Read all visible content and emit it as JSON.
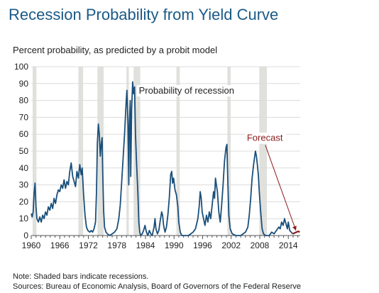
{
  "header": {
    "title": "Recession Probability from Yield Curve",
    "subtitle": "Percent probability, as predicted by a probit model"
  },
  "footer": {
    "note": "Note: Shaded bars indicate recessions.",
    "sources": "Sources: Bureau of Economic Analysis, Board of Governors of the Federal Reserve"
  },
  "chart_data": {
    "type": "line",
    "title": "Recession Probability from Yield Curve",
    "ylabel": "Percent probability, as predicted by a probit model",
    "xlim": [
      1960,
      2016.5
    ],
    "ylim": [
      0,
      100
    ],
    "grid": true,
    "x_ticks": [
      "1960",
      "1966",
      "1972",
      "1978",
      "1984",
      "1990",
      "1996",
      "2002",
      "2008",
      "2014"
    ],
    "x_tick_values": [
      1960,
      1966,
      1972,
      1978,
      1984,
      1990,
      1996,
      2002,
      2008,
      2014
    ],
    "y_ticks": [
      "0",
      "10",
      "20",
      "30",
      "40",
      "50",
      "60",
      "70",
      "80",
      "90",
      "100"
    ],
    "y_tick_values": [
      0,
      10,
      20,
      30,
      40,
      50,
      60,
      70,
      80,
      90,
      100
    ],
    "recessions": [
      [
        1960.3,
        1961.1
      ],
      [
        1969.9,
        1970.9
      ],
      [
        1973.9,
        1975.2
      ],
      [
        1980.0,
        1980.5
      ],
      [
        1981.5,
        1982.9
      ],
      [
        1990.5,
        1991.2
      ],
      [
        2001.2,
        2001.9
      ],
      [
        2007.9,
        2009.5
      ]
    ],
    "colors": {
      "line": "#1a4f7a",
      "recession": "#e0e0dc",
      "forecast": "#8b1a1a",
      "grid": "#dcdcdc"
    },
    "annotations": [
      {
        "text": "Probability of recession",
        "x": 1982.6,
        "y": 84
      },
      {
        "text": "Forecast",
        "x": 2005.3,
        "y": 56
      }
    ],
    "series": [
      {
        "name": "Probability of recession",
        "points": [
          [
            1960.0,
            13
          ],
          [
            1960.2,
            11
          ],
          [
            1960.4,
            14
          ],
          [
            1960.6,
            25
          ],
          [
            1960.8,
            31
          ],
          [
            1961.0,
            17
          ],
          [
            1961.2,
            10
          ],
          [
            1961.5,
            8
          ],
          [
            1961.8,
            11
          ],
          [
            1962.1,
            8
          ],
          [
            1962.4,
            12
          ],
          [
            1962.7,
            10
          ],
          [
            1963.0,
            14
          ],
          [
            1963.3,
            12
          ],
          [
            1963.6,
            17
          ],
          [
            1963.9,
            15
          ],
          [
            1964.2,
            19
          ],
          [
            1964.5,
            16
          ],
          [
            1964.8,
            22
          ],
          [
            1965.1,
            19
          ],
          [
            1965.4,
            24
          ],
          [
            1965.7,
            27
          ],
          [
            1966.0,
            26
          ],
          [
            1966.3,
            30
          ],
          [
            1966.6,
            28
          ],
          [
            1966.9,
            33
          ],
          [
            1967.2,
            28
          ],
          [
            1967.5,
            32
          ],
          [
            1967.8,
            30
          ],
          [
            1968.1,
            38
          ],
          [
            1968.4,
            43
          ],
          [
            1968.7,
            35
          ],
          [
            1969.0,
            32
          ],
          [
            1969.3,
            29
          ],
          [
            1969.6,
            38
          ],
          [
            1969.9,
            34
          ],
          [
            1970.2,
            42
          ],
          [
            1970.5,
            36
          ],
          [
            1970.7,
            40
          ],
          [
            1971.0,
            24
          ],
          [
            1971.3,
            12
          ],
          [
            1971.6,
            5
          ],
          [
            1971.9,
            3
          ],
          [
            1972.3,
            2
          ],
          [
            1972.6,
            3
          ],
          [
            1972.9,
            2
          ],
          [
            1973.2,
            4
          ],
          [
            1973.5,
            8
          ],
          [
            1973.7,
            25
          ],
          [
            1973.9,
            55
          ],
          [
            1974.1,
            66
          ],
          [
            1974.3,
            60
          ],
          [
            1974.5,
            47
          ],
          [
            1974.7,
            54
          ],
          [
            1974.9,
            58
          ],
          [
            1975.0,
            40
          ],
          [
            1975.2,
            15
          ],
          [
            1975.4,
            5
          ],
          [
            1975.7,
            2
          ],
          [
            1976.0,
            1
          ],
          [
            1976.5,
            0
          ],
          [
            1977.0,
            1
          ],
          [
            1977.5,
            2
          ],
          [
            1978.0,
            4
          ],
          [
            1978.4,
            10
          ],
          [
            1978.7,
            18
          ],
          [
            1979.0,
            32
          ],
          [
            1979.3,
            46
          ],
          [
            1979.6,
            60
          ],
          [
            1979.9,
            77
          ],
          [
            1980.1,
            86
          ],
          [
            1980.3,
            68
          ],
          [
            1980.5,
            30
          ],
          [
            1980.6,
            65
          ],
          [
            1980.8,
            80
          ],
          [
            1980.9,
            35
          ],
          [
            1981.1,
            75
          ],
          [
            1981.3,
            91
          ],
          [
            1981.5,
            84
          ],
          [
            1981.7,
            88
          ],
          [
            1981.9,
            60
          ],
          [
            1982.1,
            45
          ],
          [
            1982.4,
            25
          ],
          [
            1982.6,
            8
          ],
          [
            1982.8,
            2
          ],
          [
            1983.0,
            0
          ],
          [
            1983.3,
            1
          ],
          [
            1983.6,
            3
          ],
          [
            1983.9,
            6
          ],
          [
            1984.2,
            2
          ],
          [
            1984.5,
            0
          ],
          [
            1984.8,
            3
          ],
          [
            1985.1,
            1
          ],
          [
            1985.4,
            0
          ],
          [
            1985.8,
            5
          ],
          [
            1986.0,
            10
          ],
          [
            1986.2,
            4
          ],
          [
            1986.5,
            1
          ],
          [
            1986.8,
            3
          ],
          [
            1987.1,
            9
          ],
          [
            1987.4,
            14
          ],
          [
            1987.6,
            12
          ],
          [
            1987.8,
            6
          ],
          [
            1988.1,
            2
          ],
          [
            1988.4,
            5
          ],
          [
            1988.7,
            12
          ],
          [
            1989.0,
            22
          ],
          [
            1989.3,
            36
          ],
          [
            1989.5,
            38
          ],
          [
            1989.7,
            31
          ],
          [
            1989.9,
            34
          ],
          [
            1990.2,
            27
          ],
          [
            1990.5,
            24
          ],
          [
            1990.8,
            17
          ],
          [
            1991.0,
            8
          ],
          [
            1991.3,
            2
          ],
          [
            1991.6,
            0
          ],
          [
            1992.0,
            0
          ],
          [
            1993.0,
            0
          ],
          [
            1993.5,
            1
          ],
          [
            1994.0,
            2
          ],
          [
            1994.5,
            4
          ],
          [
            1995.0,
            10
          ],
          [
            1995.3,
            18
          ],
          [
            1995.5,
            26
          ],
          [
            1995.7,
            22
          ],
          [
            1995.9,
            14
          ],
          [
            1996.2,
            10
          ],
          [
            1996.5,
            6
          ],
          [
            1996.8,
            12
          ],
          [
            1997.1,
            8
          ],
          [
            1997.4,
            14
          ],
          [
            1997.7,
            10
          ],
          [
            1998.0,
            18
          ],
          [
            1998.3,
            26
          ],
          [
            1998.5,
            22
          ],
          [
            1998.7,
            34
          ],
          [
            1998.9,
            30
          ],
          [
            1999.1,
            26
          ],
          [
            1999.4,
            14
          ],
          [
            1999.7,
            8
          ],
          [
            2000.0,
            18
          ],
          [
            2000.3,
            30
          ],
          [
            2000.6,
            44
          ],
          [
            2000.9,
            52
          ],
          [
            2001.1,
            54
          ],
          [
            2001.3,
            32
          ],
          [
            2001.5,
            12
          ],
          [
            2001.8,
            4
          ],
          [
            2002.2,
            1
          ],
          [
            2003.0,
            0
          ],
          [
            2004.0,
            0
          ],
          [
            2004.5,
            1
          ],
          [
            2005.0,
            2
          ],
          [
            2005.5,
            5
          ],
          [
            2005.8,
            12
          ],
          [
            2006.1,
            22
          ],
          [
            2006.4,
            34
          ],
          [
            2006.7,
            42
          ],
          [
            2006.9,
            46
          ],
          [
            2007.1,
            50
          ],
          [
            2007.3,
            47
          ],
          [
            2007.5,
            42
          ],
          [
            2007.7,
            36
          ],
          [
            2007.9,
            26
          ],
          [
            2008.2,
            14
          ],
          [
            2008.5,
            4
          ],
          [
            2008.8,
            1
          ],
          [
            2009.2,
            0
          ],
          [
            2010.0,
            0
          ],
          [
            2010.5,
            2
          ],
          [
            2011.0,
            1
          ],
          [
            2011.5,
            3
          ],
          [
            2012.0,
            5
          ],
          [
            2012.3,
            4
          ],
          [
            2012.6,
            8
          ],
          [
            2012.9,
            6
          ],
          [
            2013.2,
            10
          ],
          [
            2013.5,
            7
          ],
          [
            2013.8,
            4
          ],
          [
            2014.0,
            8
          ],
          [
            2014.3,
            3
          ],
          [
            2014.6,
            2
          ],
          [
            2014.9,
            1
          ]
        ]
      },
      {
        "name": "Forecast",
        "points": [
          [
            2014.9,
            1
          ],
          [
            2015.3,
            1.5
          ],
          [
            2015.7,
            2
          ],
          [
            2016.1,
            2.5
          ],
          [
            2016.4,
            2
          ]
        ]
      }
    ]
  }
}
